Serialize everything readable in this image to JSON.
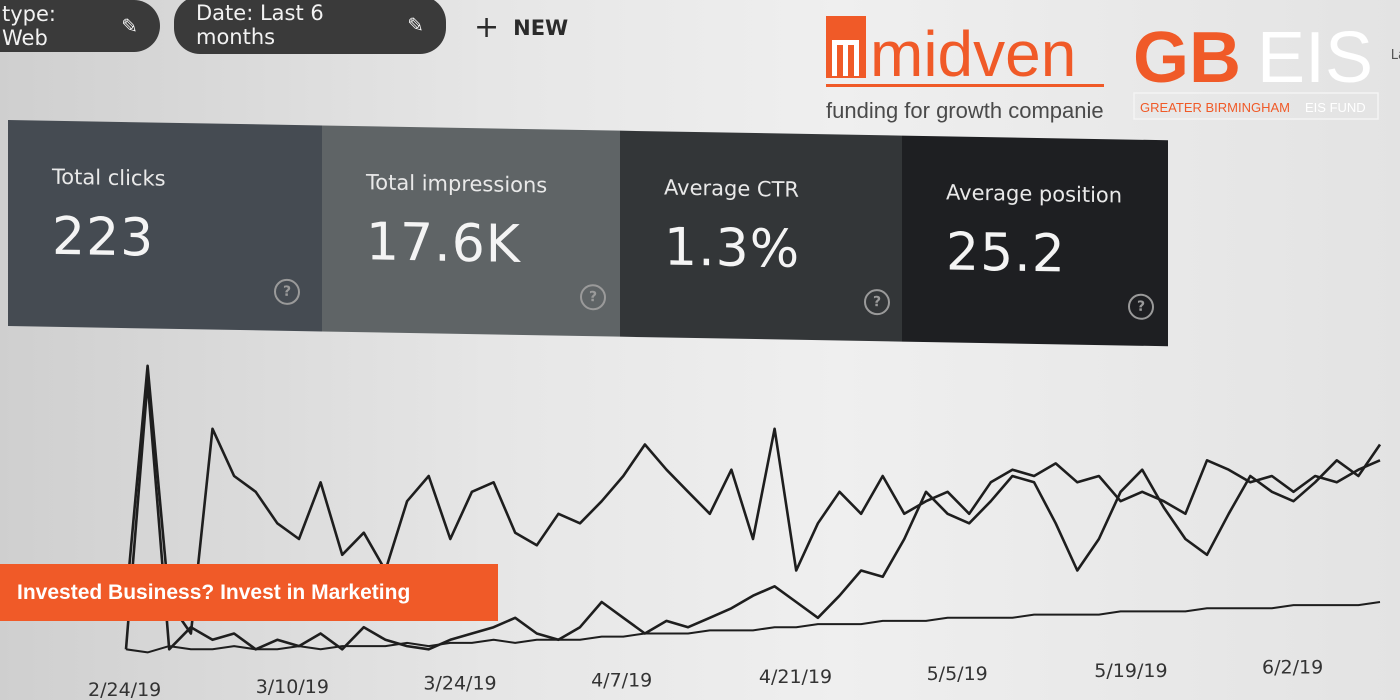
{
  "filters": {
    "type_chip": "type: Web",
    "date_chip": "Date: Last 6 months",
    "new_button": "NEW",
    "edge_text": "La"
  },
  "logos": {
    "midven": {
      "name": "midven",
      "tagline": "funding for growth companies"
    },
    "gbeis": {
      "name_left": "GB",
      "name_right": "EIS",
      "sub_left": "GREATER BIRMINGHAM",
      "sub_right": "EIS FUND"
    }
  },
  "metrics": [
    {
      "label": "Total clicks",
      "value": "223"
    },
    {
      "label": "Total impressions",
      "value": "17.6K"
    },
    {
      "label": "Average CTR",
      "value": "1.3%"
    },
    {
      "label": "Average position",
      "value": "25.2"
    }
  ],
  "banner": {
    "text": "Invested Business? Invest in Marketing"
  },
  "colors": {
    "accent": "#f05a28",
    "line": "#1e1e1e"
  },
  "chart_data": {
    "type": "line",
    "x_tick_labels": [
      "2/24/19",
      "3/10/19",
      "3/24/19",
      "4/7/19",
      "4/21/19",
      "5/5/19",
      "5/19/19",
      "6/2/19"
    ],
    "series": [
      {
        "values": [
          20,
          95,
          20,
          10,
          75,
          60,
          55,
          45,
          40,
          58,
          35,
          42,
          30,
          52,
          60,
          40,
          55,
          58,
          42,
          38,
          48,
          45,
          52,
          60,
          70,
          62,
          55,
          48,
          62,
          40,
          75,
          30,
          45,
          55,
          48,
          60,
          48,
          52,
          55,
          48,
          58,
          62,
          60,
          64,
          58,
          60,
          52,
          55,
          52,
          48,
          65,
          62,
          58,
          60,
          55,
          60,
          58,
          62,
          65
        ]
      },
      {
        "values": [
          5,
          90,
          5,
          12,
          8,
          10,
          5,
          8,
          6,
          10,
          5,
          12,
          8,
          6,
          5,
          8,
          10,
          12,
          15,
          10,
          8,
          12,
          20,
          15,
          10,
          14,
          12,
          15,
          18,
          22,
          25,
          20,
          15,
          22,
          30,
          28,
          40,
          55,
          48,
          45,
          52,
          60,
          58,
          45,
          30,
          40,
          55,
          62,
          50,
          40,
          35,
          48,
          60,
          55,
          52,
          58,
          65,
          60,
          70
        ]
      },
      {
        "values": [
          5,
          4,
          6,
          5,
          5,
          6,
          5,
          5,
          6,
          5,
          6,
          6,
          6,
          7,
          6,
          7,
          7,
          8,
          7,
          8,
          8,
          8,
          9,
          9,
          10,
          10,
          10,
          11,
          11,
          11,
          12,
          12,
          13,
          13,
          13,
          14,
          14,
          14,
          15,
          15,
          15,
          15,
          16,
          16,
          16,
          16,
          17,
          17,
          17,
          17,
          18,
          18,
          18,
          18,
          19,
          19,
          19,
          19,
          20
        ]
      }
    ]
  }
}
